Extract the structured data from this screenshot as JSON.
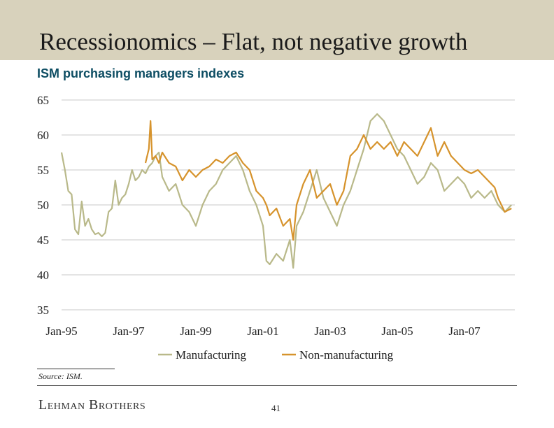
{
  "slide": {
    "title": "Recessionomics – Flat, not negative growth",
    "subtitle": "ISM purchasing managers indexes",
    "source": "Source: ISM.",
    "brand": "Lehman Brothers",
    "page_number": "41"
  },
  "colors": {
    "title_band": "#d8d2bc",
    "subtitle": "#0d4d63",
    "manufacturing": "#b9b98a",
    "non_manufacturing": "#d6932c",
    "grid": "#c8c8c8"
  },
  "chart_data": {
    "type": "line",
    "title": "",
    "xlabel": "",
    "ylabel": "",
    "ylim": [
      35,
      65
    ],
    "y_ticks": [
      65,
      60,
      55,
      50,
      45,
      40,
      35
    ],
    "x_ticks": [
      "Jan-95",
      "Jan-97",
      "Jan-99",
      "Jan-01",
      "Jan-03",
      "Jan-05",
      "Jan-07"
    ],
    "x_tick_positions": [
      1995,
      1997,
      1999,
      2001,
      2003,
      2005,
      2007
    ],
    "xlim": [
      1995,
      2008.5
    ],
    "grid": true,
    "legend_position": "bottom",
    "series": [
      {
        "name": "Manufacturing",
        "x": [
          1995.0,
          1995.1,
          1995.2,
          1995.3,
          1995.4,
          1995.5,
          1995.6,
          1995.7,
          1995.8,
          1995.9,
          1996.0,
          1996.1,
          1996.2,
          1996.3,
          1996.4,
          1996.5,
          1996.6,
          1996.7,
          1996.8,
          1996.9,
          1997.0,
          1997.1,
          1997.2,
          1997.3,
          1997.4,
          1997.5,
          1997.6,
          1997.7,
          1997.8,
          1997.9,
          1998.0,
          1998.2,
          1998.4,
          1998.6,
          1998.8,
          1999.0,
          1999.2,
          1999.4,
          1999.6,
          1999.8,
          2000.0,
          2000.2,
          2000.4,
          2000.6,
          2000.8,
          2001.0,
          2001.1,
          2001.2,
          2001.4,
          2001.6,
          2001.8,
          2001.9,
          2002.0,
          2002.2,
          2002.4,
          2002.6,
          2002.8,
          2003.0,
          2003.2,
          2003.4,
          2003.6,
          2003.8,
          2004.0,
          2004.2,
          2004.4,
          2004.6,
          2004.8,
          2005.0,
          2005.2,
          2005.4,
          2005.6,
          2005.8,
          2006.0,
          2006.2,
          2006.4,
          2006.6,
          2006.8,
          2007.0,
          2007.2,
          2007.4,
          2007.6,
          2007.8,
          2008.0,
          2008.2,
          2008.4
        ],
        "y": [
          57.5,
          55,
          52,
          51.5,
          46.5,
          45.8,
          50.5,
          47,
          48,
          46.5,
          45.8,
          46,
          45.5,
          46,
          49,
          49.5,
          53.5,
          50,
          51,
          51.5,
          53,
          55,
          53.5,
          54,
          55,
          54.5,
          55.5,
          56,
          57,
          57.5,
          54,
          52,
          53,
          50,
          49,
          47,
          50,
          52,
          53,
          55,
          56,
          57,
          55,
          52,
          50,
          47,
          42,
          41.5,
          43,
          42,
          45,
          41,
          47,
          49,
          52,
          55,
          51,
          49,
          47,
          50,
          52,
          55,
          58,
          62,
          63,
          62,
          60,
          58,
          57,
          55,
          53,
          54,
          56,
          55,
          52,
          53,
          54,
          53,
          51,
          52,
          51,
          52,
          50,
          49,
          50
        ]
      },
      {
        "name": "Non-manufacturing",
        "x": [
          1997.5,
          1997.6,
          1997.65,
          1997.7,
          1997.8,
          1997.9,
          1998.0,
          1998.2,
          1998.4,
          1998.6,
          1998.8,
          1999.0,
          1999.2,
          1999.4,
          1999.6,
          1999.8,
          2000.0,
          2000.2,
          2000.4,
          2000.6,
          2000.8,
          2001.0,
          2001.1,
          2001.2,
          2001.4,
          2001.6,
          2001.8,
          2001.9,
          2002.0,
          2002.2,
          2002.4,
          2002.6,
          2002.8,
          2003.0,
          2003.2,
          2003.4,
          2003.6,
          2003.8,
          2004.0,
          2004.2,
          2004.4,
          2004.6,
          2004.8,
          2005.0,
          2005.2,
          2005.4,
          2005.6,
          2005.8,
          2006.0,
          2006.2,
          2006.4,
          2006.6,
          2006.8,
          2007.0,
          2007.2,
          2007.4,
          2007.6,
          2007.8,
          2007.9,
          2008.0,
          2008.2,
          2008.4
        ],
        "y": [
          56,
          58,
          62,
          56.5,
          57,
          56,
          57.5,
          56,
          55.5,
          53.5,
          55,
          54,
          55,
          55.5,
          56.5,
          56,
          57,
          57.5,
          56,
          55,
          52,
          51,
          50,
          48.5,
          49.5,
          47,
          48,
          45,
          50,
          53,
          55,
          51,
          52,
          53,
          50,
          52,
          57,
          58,
          60,
          58,
          59,
          58,
          59,
          57,
          59,
          58,
          57,
          59,
          61,
          57,
          59,
          57,
          56,
          55,
          54.5,
          55,
          54,
          53,
          52.5,
          51,
          49,
          49.5
        ]
      }
    ]
  }
}
